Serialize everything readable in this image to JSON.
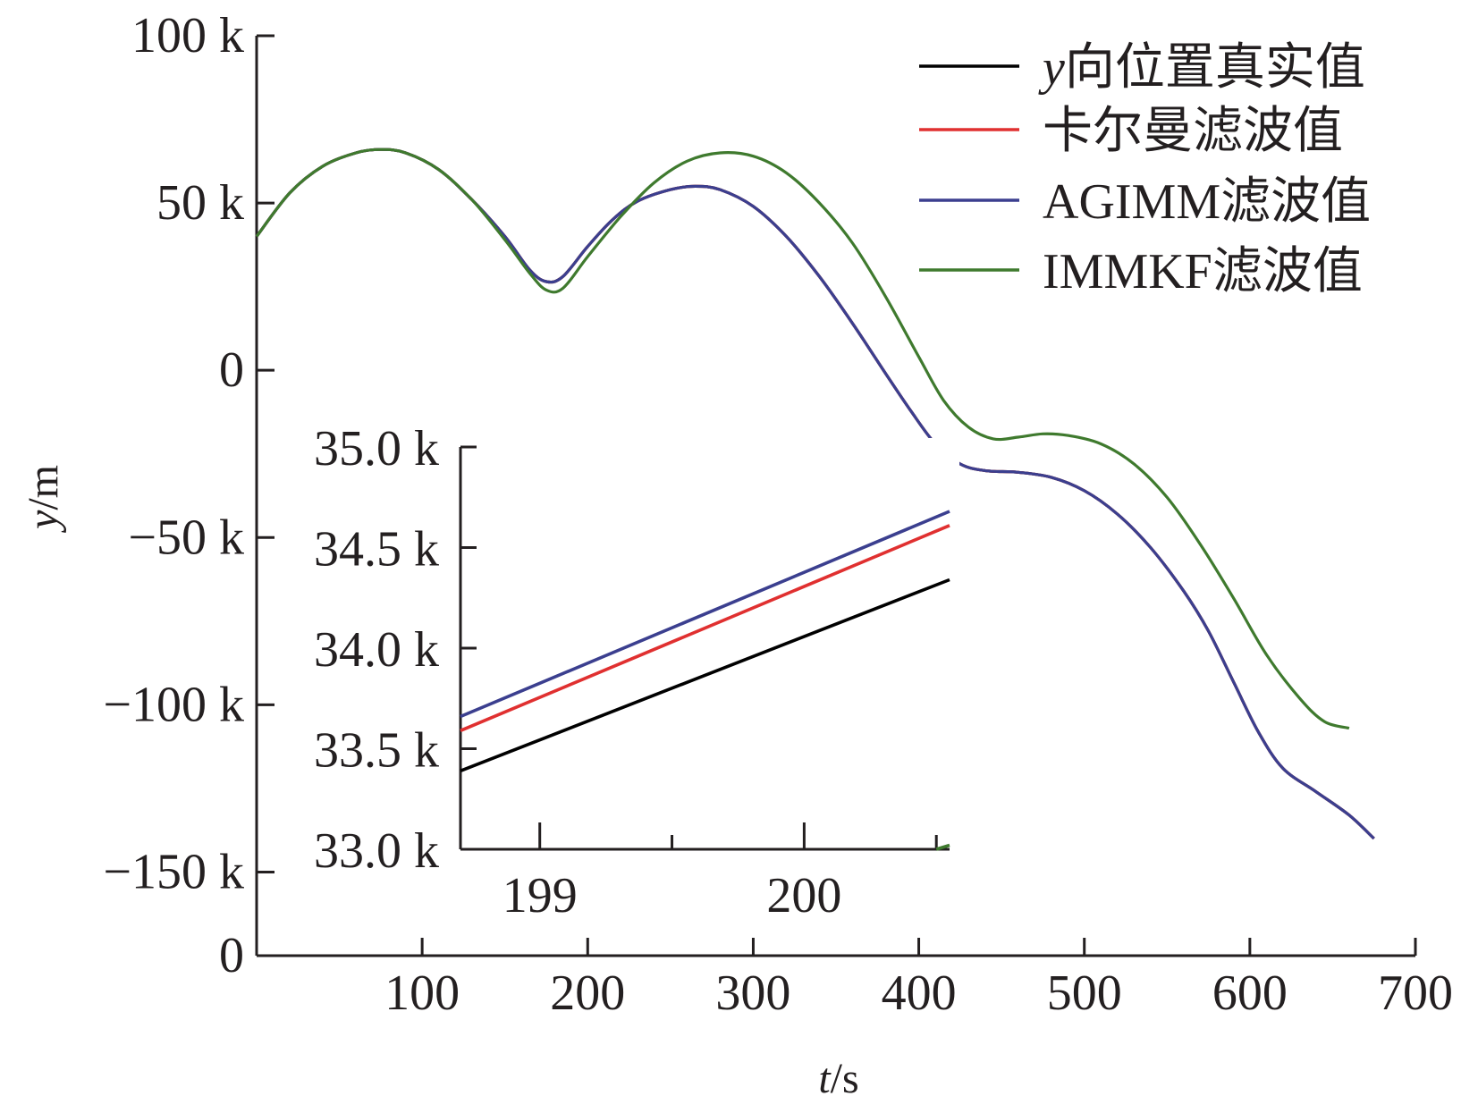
{
  "chart_data": [
    {
      "type": "line",
      "xlabel": "t/s",
      "ylabel": "y/m",
      "xlim": [
        0,
        700
      ],
      "ylim": [
        -175000,
        100000
      ],
      "x_ticks": [
        100,
        200,
        300,
        400,
        500,
        600,
        700
      ],
      "x_tick_labels": [
        "100",
        "200",
        "300",
        "400",
        "500",
        "600",
        "700"
      ],
      "y_ticks": [
        100000,
        50000,
        0,
        -50000,
        -100000,
        -150000
      ],
      "y_tick_labels": [
        "100 k",
        "50 k",
        "0",
        "−50 k",
        "−100 k",
        "−150 k"
      ],
      "origin_label": "0",
      "legend": {
        "position": "top-right",
        "entries": [
          {
            "series": "y向位置真实值",
            "italic_prefix": "y",
            "rest": "向位置真实值"
          },
          {
            "series": "卡尔曼滤波值",
            "italic_prefix": "",
            "rest": "卡尔曼滤波值"
          },
          {
            "series": "AGIMM滤波值",
            "italic_prefix": "",
            "rest": "AGIMM滤波值"
          },
          {
            "series": "IMMKF滤波值",
            "italic_prefix": "",
            "rest": "IMMKF滤波值"
          }
        ]
      },
      "series": [
        {
          "name": "y向位置真实值",
          "color": "#000000",
          "points": [
            [
              0,
              40000
            ],
            [
              20,
              53000
            ],
            [
              40,
              61000
            ],
            [
              60,
              65000
            ],
            [
              75,
              66000
            ],
            [
              90,
              65000
            ],
            [
              110,
              60000
            ],
            [
              130,
              51000
            ],
            [
              150,
              40000
            ],
            [
              165,
              30000
            ],
            [
              175,
              26500
            ],
            [
              185,
              28000
            ],
            [
              200,
              37000
            ],
            [
              215,
              45000
            ],
            [
              230,
              50500
            ],
            [
              250,
              54000
            ],
            [
              265,
              55000
            ],
            [
              280,
              54000
            ],
            [
              300,
              49000
            ],
            [
              320,
              40000
            ],
            [
              340,
              28000
            ],
            [
              360,
              14000
            ],
            [
              380,
              -1000
            ],
            [
              395,
              -12000
            ],
            [
              410,
              -22000
            ],
            [
              425,
              -28000
            ],
            [
              440,
              -30000
            ],
            [
              460,
              -30500
            ],
            [
              480,
              -32000
            ],
            [
              500,
              -36000
            ],
            [
              520,
              -43000
            ],
            [
              540,
              -53000
            ],
            [
              560,
              -66000
            ],
            [
              575,
              -78000
            ],
            [
              590,
              -93000
            ],
            [
              605,
              -108000
            ],
            [
              620,
              -119000
            ],
            [
              640,
              -126000
            ],
            [
              660,
              -133000
            ],
            [
              675,
              -140000
            ]
          ]
        },
        {
          "name": "卡尔曼滤波值",
          "color": "#e03030",
          "points": [
            [
              0,
              40000
            ],
            [
              20,
              53000
            ],
            [
              40,
              61000
            ],
            [
              60,
              65000
            ],
            [
              75,
              66000
            ],
            [
              90,
              65000
            ],
            [
              110,
              60000
            ],
            [
              130,
              51000
            ],
            [
              150,
              40000
            ],
            [
              165,
              30000
            ],
            [
              175,
              26500
            ],
            [
              185,
              28000
            ],
            [
              200,
              37000
            ],
            [
              215,
              45000
            ],
            [
              230,
              50500
            ],
            [
              250,
              54000
            ],
            [
              265,
              55000
            ],
            [
              280,
              54000
            ],
            [
              300,
              49000
            ],
            [
              320,
              40000
            ],
            [
              340,
              28000
            ],
            [
              360,
              14000
            ],
            [
              380,
              -1000
            ],
            [
              395,
              -12000
            ],
            [
              410,
              -22000
            ],
            [
              425,
              -28000
            ],
            [
              440,
              -30000
            ],
            [
              460,
              -30500
            ],
            [
              480,
              -32000
            ],
            [
              500,
              -36000
            ],
            [
              520,
              -43000
            ],
            [
              540,
              -53000
            ],
            [
              560,
              -66000
            ],
            [
              575,
              -78000
            ],
            [
              590,
              -93000
            ],
            [
              605,
              -108000
            ],
            [
              620,
              -119000
            ],
            [
              640,
              -126000
            ],
            [
              660,
              -133000
            ],
            [
              675,
              -140000
            ]
          ]
        },
        {
          "name": "AGIMM滤波值",
          "color": "#3b3f8f",
          "points": [
            [
              0,
              40000
            ],
            [
              20,
              53000
            ],
            [
              40,
              61000
            ],
            [
              60,
              65000
            ],
            [
              75,
              66000
            ],
            [
              90,
              65000
            ],
            [
              110,
              60000
            ],
            [
              130,
              51000
            ],
            [
              150,
              40000
            ],
            [
              165,
              30000
            ],
            [
              175,
              26500
            ],
            [
              185,
              28000
            ],
            [
              200,
              37000
            ],
            [
              215,
              45000
            ],
            [
              230,
              50500
            ],
            [
              250,
              54000
            ],
            [
              265,
              55000
            ],
            [
              280,
              54000
            ],
            [
              300,
              49000
            ],
            [
              320,
              40000
            ],
            [
              340,
              28000
            ],
            [
              360,
              14000
            ],
            [
              380,
              -1000
            ],
            [
              395,
              -12000
            ],
            [
              410,
              -22000
            ],
            [
              425,
              -28000
            ],
            [
              440,
              -30000
            ],
            [
              460,
              -30500
            ],
            [
              480,
              -32000
            ],
            [
              500,
              -36000
            ],
            [
              520,
              -43000
            ],
            [
              540,
              -53000
            ],
            [
              560,
              -66000
            ],
            [
              575,
              -78000
            ],
            [
              590,
              -93000
            ],
            [
              605,
              -108000
            ],
            [
              620,
              -119000
            ],
            [
              640,
              -126000
            ],
            [
              660,
              -133000
            ],
            [
              675,
              -140000
            ]
          ]
        },
        {
          "name": "IMMKF滤波值",
          "color": "#3f7a2e",
          "points": [
            [
              0,
              40000
            ],
            [
              20,
              53000
            ],
            [
              40,
              61000
            ],
            [
              60,
              65000
            ],
            [
              75,
              66000
            ],
            [
              90,
              65000
            ],
            [
              110,
              60000
            ],
            [
              130,
              51000
            ],
            [
              150,
              39000
            ],
            [
              165,
              29000
            ],
            [
              175,
              24000
            ],
            [
              185,
              24500
            ],
            [
              200,
              34000
            ],
            [
              220,
              46000
            ],
            [
              240,
              56000
            ],
            [
              260,
              62500
            ],
            [
              280,
              65000
            ],
            [
              300,
              64000
            ],
            [
              320,
              59000
            ],
            [
              340,
              50000
            ],
            [
              360,
              38000
            ],
            [
              380,
              22000
            ],
            [
              400,
              4000
            ],
            [
              415,
              -9000
            ],
            [
              430,
              -17000
            ],
            [
              445,
              -20500
            ],
            [
              460,
              -20000
            ],
            [
              475,
              -19000
            ],
            [
              490,
              -19500
            ],
            [
              510,
              -22000
            ],
            [
              530,
              -28000
            ],
            [
              550,
              -38000
            ],
            [
              570,
              -52000
            ],
            [
              590,
              -68000
            ],
            [
              610,
              -85000
            ],
            [
              630,
              -98000
            ],
            [
              645,
              -105000
            ],
            [
              660,
              -107000
            ]
          ]
        }
      ]
    },
    {
      "type": "line",
      "inset": true,
      "xlim": [
        198.7,
        200.55
      ],
      "ylim": [
        33000,
        35000
      ],
      "x_ticks": [
        199,
        200
      ],
      "x_tick_labels": [
        "199",
        "200"
      ],
      "y_ticks": [
        33000,
        33500,
        34000,
        34500,
        35000
      ],
      "y_tick_labels": [
        "33.0 k",
        "33.5 k",
        "34.0 k",
        "34.5 k",
        "35.0 k"
      ],
      "minor_x_ticks": [
        199.5,
        200.5
      ],
      "series": [
        {
          "name": "y向位置真实值",
          "color": "#000000",
          "points": [
            [
              198.7,
              33390
            ],
            [
              200.55,
              34340
            ]
          ]
        },
        {
          "name": "卡尔曼滤波值",
          "color": "#e03030",
          "points": [
            [
              198.7,
              33590
            ],
            [
              200.55,
              34610
            ]
          ]
        },
        {
          "name": "AGIMM滤波值",
          "color": "#3b3f8f",
          "points": [
            [
              198.7,
              33660
            ],
            [
              200.55,
              34680
            ]
          ]
        },
        {
          "name": "IMMKF滤波值",
          "color": "#3f7a2e",
          "points": [
            [
              200.5,
              33000
            ],
            [
              200.55,
              33020
            ]
          ]
        }
      ]
    }
  ]
}
